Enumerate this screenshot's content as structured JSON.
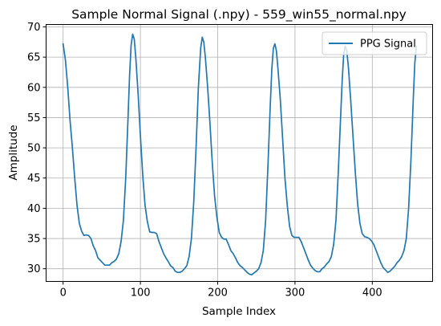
{
  "chart_data": {
    "type": "line",
    "title": "Sample Normal Signal (.npy) - 559_win55_normal.npy",
    "xlabel": "Sample Index",
    "ylabel": "Amplitude",
    "xlim": [
      -22,
      478
    ],
    "ylim": [
      27.9,
      70.4
    ],
    "xticks": [
      0,
      100,
      200,
      300,
      400
    ],
    "yticks": [
      30,
      35,
      40,
      45,
      50,
      55,
      60,
      65,
      70
    ],
    "grid": true,
    "legend_position": "top-right",
    "colors": {
      "series": "#1f77b4",
      "grid": "#b0b0b0",
      "axes": "#000000"
    },
    "series": [
      {
        "name": "PPG Signal",
        "keypoints": [
          [
            0,
            67.2
          ],
          [
            3,
            64.5
          ],
          [
            6,
            60.0
          ],
          [
            9,
            54.5
          ],
          [
            12,
            50.0
          ],
          [
            15,
            45.0
          ],
          [
            18,
            40.5
          ],
          [
            21,
            37.5
          ],
          [
            24,
            36.2
          ],
          [
            27,
            35.5
          ],
          [
            30,
            35.6
          ],
          [
            33,
            35.5
          ],
          [
            36,
            35.0
          ],
          [
            39,
            33.8
          ],
          [
            42,
            33.0
          ],
          [
            45,
            31.8
          ],
          [
            48,
            31.4
          ],
          [
            51,
            31.0
          ],
          [
            54,
            30.6
          ],
          [
            57,
            30.6
          ],
          [
            60,
            30.6
          ],
          [
            63,
            31.0
          ],
          [
            66,
            31.2
          ],
          [
            69,
            31.6
          ],
          [
            72,
            32.5
          ],
          [
            75,
            34.5
          ],
          [
            78,
            38.0
          ],
          [
            81,
            45.0
          ],
          [
            84,
            55.0
          ],
          [
            86,
            62.0
          ],
          [
            88,
            67.0
          ],
          [
            90,
            68.8
          ],
          [
            92,
            68.0
          ],
          [
            94,
            65.0
          ],
          [
            97,
            59.0
          ],
          [
            100,
            52.0
          ],
          [
            103,
            45.5
          ],
          [
            106,
            40.5
          ],
          [
            109,
            37.8
          ],
          [
            112,
            36.1
          ],
          [
            115,
            36.0
          ],
          [
            118,
            36.0
          ],
          [
            121,
            35.8
          ],
          [
            124,
            34.5
          ],
          [
            127,
            33.5
          ],
          [
            130,
            32.5
          ],
          [
            133,
            31.8
          ],
          [
            136,
            31.2
          ],
          [
            139,
            30.5
          ],
          [
            142,
            30.2
          ],
          [
            145,
            29.6
          ],
          [
            148,
            29.4
          ],
          [
            151,
            29.4
          ],
          [
            154,
            29.6
          ],
          [
            157,
            30.0
          ],
          [
            160,
            30.5
          ],
          [
            163,
            32.0
          ],
          [
            166,
            35.0
          ],
          [
            169,
            41.0
          ],
          [
            172,
            50.0
          ],
          [
            175,
            60.0
          ],
          [
            178,
            66.5
          ],
          [
            180,
            68.3
          ],
          [
            182,
            67.5
          ],
          [
            184,
            65.0
          ],
          [
            187,
            60.0
          ],
          [
            190,
            54.0
          ],
          [
            193,
            47.5
          ],
          [
            196,
            42.0
          ],
          [
            199,
            38.5
          ],
          [
            202,
            36.0
          ],
          [
            205,
            35.2
          ],
          [
            208,
            34.9
          ],
          [
            211,
            34.9
          ],
          [
            214,
            34.0
          ],
          [
            217,
            33.0
          ],
          [
            220,
            32.5
          ],
          [
            223,
            31.8
          ],
          [
            226,
            31.0
          ],
          [
            229,
            30.5
          ],
          [
            232,
            30.2
          ],
          [
            235,
            29.8
          ],
          [
            238,
            29.4
          ],
          [
            241,
            29.1
          ],
          [
            244,
            29.0
          ],
          [
            247,
            29.3
          ],
          [
            250,
            29.6
          ],
          [
            253,
            30.0
          ],
          [
            256,
            31.0
          ],
          [
            259,
            33.0
          ],
          [
            262,
            38.0
          ],
          [
            265,
            47.0
          ],
          [
            268,
            57.0
          ],
          [
            270,
            63.0
          ],
          [
            272,
            66.5
          ],
          [
            274,
            67.2
          ],
          [
            276,
            66.0
          ],
          [
            278,
            63.0
          ],
          [
            281,
            58.0
          ],
          [
            284,
            51.5
          ],
          [
            287,
            45.0
          ],
          [
            290,
            40.5
          ],
          [
            293,
            37.0
          ],
          [
            296,
            35.5
          ],
          [
            299,
            35.2
          ],
          [
            302,
            35.2
          ],
          [
            305,
            35.2
          ],
          [
            308,
            34.5
          ],
          [
            311,
            33.5
          ],
          [
            314,
            32.5
          ],
          [
            317,
            31.5
          ],
          [
            320,
            30.6
          ],
          [
            323,
            30.1
          ],
          [
            326,
            29.7
          ],
          [
            329,
            29.5
          ],
          [
            332,
            29.5
          ],
          [
            335,
            30.0
          ],
          [
            338,
            30.3
          ],
          [
            341,
            30.8
          ],
          [
            344,
            31.2
          ],
          [
            347,
            32.0
          ],
          [
            350,
            34.0
          ],
          [
            353,
            38.0
          ],
          [
            356,
            46.0
          ],
          [
            359,
            55.0
          ],
          [
            361,
            61.0
          ],
          [
            363,
            65.5
          ],
          [
            365,
            66.8
          ],
          [
            367,
            66.0
          ],
          [
            369,
            63.5
          ],
          [
            372,
            58.0
          ],
          [
            375,
            52.0
          ],
          [
            378,
            46.0
          ],
          [
            381,
            40.8
          ],
          [
            384,
            37.5
          ],
          [
            387,
            35.8
          ],
          [
            390,
            35.3
          ],
          [
            393,
            35.2
          ],
          [
            396,
            35.0
          ],
          [
            399,
            34.6
          ],
          [
            402,
            34.0
          ],
          [
            405,
            33.0
          ],
          [
            408,
            32.0
          ],
          [
            411,
            31.0
          ],
          [
            414,
            30.2
          ],
          [
            417,
            29.8
          ],
          [
            420,
            29.4
          ],
          [
            423,
            29.6
          ],
          [
            426,
            30.0
          ],
          [
            429,
            30.4
          ],
          [
            432,
            31.0
          ],
          [
            435,
            31.4
          ],
          [
            438,
            32.0
          ],
          [
            441,
            33.0
          ],
          [
            444,
            35.0
          ],
          [
            447,
            40.0
          ],
          [
            450,
            48.0
          ],
          [
            453,
            58.0
          ],
          [
            455,
            64.0
          ],
          [
            457,
            66.8
          ]
        ]
      }
    ]
  }
}
